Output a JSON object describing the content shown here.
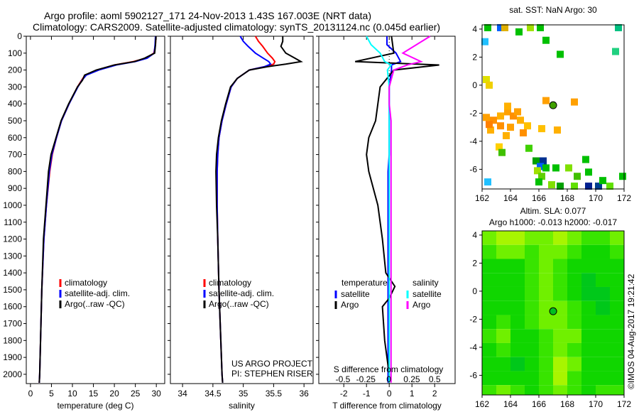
{
  "header": {
    "line1": "Argo profile: aoml 5902127_171 24-Nov-2013 1.43S 167.003E (NRT data)",
    "line2": "Climatology: CARS2009. Satellite-adjusted climatology: synTS_20131124.nc (0.045d earlier)"
  },
  "colors": {
    "climatology": "#ff0000",
    "satellite": "#0000ff",
    "argo": "#000000",
    "sal_satellite": "#00ffff",
    "sal_argo": "#ff00ff"
  },
  "chart_data": [
    {
      "type": "line",
      "id": "temperature",
      "xlabel": "temperature (deg C)",
      "ylabel": "",
      "xlim": [
        -1,
        32
      ],
      "ylim": [
        2055,
        0
      ],
      "xticks": [
        0,
        5,
        10,
        15,
        20,
        25,
        30
      ],
      "yticks": [
        0,
        100,
        200,
        300,
        400,
        500,
        600,
        700,
        800,
        900,
        1000,
        1100,
        1200,
        1300,
        1400,
        1500,
        1600,
        1700,
        1800,
        1900,
        2000
      ],
      "legend": [
        "climatology",
        "satellite-adj. clim.",
        "Argo(..raw -QC)"
      ],
      "depth": [
        0,
        50,
        100,
        130,
        150,
        170,
        200,
        230,
        260,
        300,
        400,
        500,
        600,
        700,
        800,
        1000,
        1200,
        1500,
        1800,
        2000,
        2050
      ],
      "series": [
        {
          "name": "climatology",
          "color": "#ff0000",
          "values": [
            29.9,
            29.8,
            29.4,
            27.5,
            24.5,
            20,
            16,
            13,
            12.2,
            11.2,
            9.2,
            7.4,
            6.2,
            5.2,
            4.6,
            3.8,
            3.2,
            2.7,
            2.4,
            2.2,
            2.1
          ]
        },
        {
          "name": "satellite-adj. clim.",
          "color": "#0000ff",
          "values": [
            29.8,
            29.7,
            29.5,
            27.8,
            25,
            20.5,
            16.3,
            13.3,
            12.3,
            11.3,
            9.2,
            7.4,
            6.2,
            5.1,
            4.5,
            3.8,
            3.2,
            2.7,
            2.4,
            2.2,
            2.1
          ]
        },
        {
          "name": "Argo(..raw -QC)",
          "color": "#000000",
          "values": [
            29.9,
            29.8,
            29.6,
            27.2,
            24.8,
            20,
            15.7,
            12.9,
            12.4,
            11.2,
            9.1,
            7.3,
            6.1,
            4.9,
            4.3,
            3.7,
            3.1,
            2.7,
            2.4,
            2.2,
            2.1
          ]
        }
      ]
    },
    {
      "type": "line",
      "id": "salinity",
      "xlabel": "salinity",
      "xlim": [
        33.8,
        36.15
      ],
      "ylim": [
        2055,
        0
      ],
      "xticks": [
        34,
        34.5,
        35,
        35.5,
        36
      ],
      "legend": [
        "climatology",
        "satellite-adj. clim.",
        "Argo(..raw -QC)"
      ],
      "annotation": [
        "US ARGO PROJECT",
        "PI: STEPHEN RISER"
      ],
      "depth": [
        0,
        30,
        60,
        100,
        130,
        150,
        165,
        180,
        200,
        250,
        300,
        400,
        500,
        600,
        700,
        800,
        1000,
        1200,
        1500,
        1800,
        2000,
        2050
      ],
      "series": [
        {
          "name": "climatology",
          "color": "#ff0000",
          "values": [
            35.2,
            35.25,
            35.32,
            35.4,
            35.48,
            35.52,
            35.5,
            35.35,
            35.1,
            34.9,
            34.8,
            34.72,
            34.65,
            34.6,
            34.58,
            34.57,
            34.57,
            34.58,
            34.6,
            34.63,
            34.65,
            34.66
          ]
        },
        {
          "name": "satellite-adj. clim.",
          "color": "#0000ff",
          "values": [
            34.95,
            35.0,
            35.08,
            35.2,
            35.33,
            35.42,
            35.45,
            35.35,
            35.1,
            34.9,
            34.8,
            34.72,
            34.65,
            34.6,
            34.58,
            34.57,
            34.57,
            34.58,
            34.6,
            34.63,
            34.65,
            34.66
          ]
        },
        {
          "name": "Argo(..raw -QC)",
          "color": "#000000",
          "values": [
            35.65,
            35.65,
            35.62,
            35.7,
            35.85,
            35.95,
            35.7,
            35.4,
            35.1,
            34.9,
            34.79,
            34.71,
            34.64,
            34.59,
            34.56,
            34.55,
            34.56,
            34.58,
            34.6,
            34.63,
            34.65,
            34.66
          ]
        }
      ]
    },
    {
      "type": "line",
      "id": "difference",
      "xlabel": "T difference from climatology",
      "x2label": "S difference from climatology",
      "xlim": [
        -3.1,
        2.9
      ],
      "ylim": [
        2055,
        0
      ],
      "xticks": [
        -2,
        -1,
        0,
        1,
        2
      ],
      "x2ticks": [
        "-0.5",
        "-0.25",
        "0",
        "0.25",
        "0.5"
      ],
      "legend": {
        "temperature": "temperature",
        "salinity": "salinity",
        "satellite": "satellite",
        "argo": "Argo"
      },
      "depth": [
        0,
        50,
        100,
        150,
        170,
        200,
        300,
        400,
        500,
        600,
        700,
        800,
        1000,
        1200,
        1400,
        1480,
        1550,
        1600,
        1800,
        2000,
        2050
      ],
      "series": [
        {
          "name": "T satellite",
          "color": "#0000ff",
          "values": [
            -0.1,
            -0.1,
            0.3,
            0.5,
            0.1,
            0.1,
            0,
            0,
            0,
            0,
            0,
            -0.05,
            -0.05,
            -0.05,
            -0.05,
            -0.05,
            -0.05,
            -0.05,
            -0.05,
            -0.05,
            -0.05
          ]
        },
        {
          "name": "T Argo",
          "color": "#000000",
          "values": [
            0.1,
            0.15,
            0.2,
            -1.5,
            2.2,
            0.2,
            -0.4,
            -0.5,
            -0.6,
            -0.9,
            -1,
            -0.9,
            -0.5,
            -0.3,
            -0.15,
            0.25,
            0,
            -0.3,
            -0.2,
            0,
            0
          ]
        },
        {
          "name": "S satellite",
          "color": "#00ffff",
          "values": [
            -0.25,
            -0.2,
            -0.1,
            -0.05,
            0.02,
            -0.02,
            0,
            0,
            0,
            0,
            0,
            0,
            0,
            0,
            0,
            0,
            0,
            0,
            0,
            0,
            0
          ]
        },
        {
          "name": "S Argo",
          "color": "#ff00ff",
          "values": [
            0.45,
            0.3,
            0.15,
            0.35,
            0.2,
            0.05,
            0,
            0,
            0.02,
            0.02,
            0.02,
            0.02,
            0.02,
            0.02,
            0.02,
            0.02,
            0.02,
            0.02,
            0.02,
            0.02,
            0.02
          ]
        }
      ]
    },
    {
      "type": "heatmap",
      "id": "sst-map",
      "title": "sat. SST: NaN Argo: 30",
      "xlim": [
        162,
        172
      ],
      "ylim": [
        -7.4,
        4.3
      ],
      "xticks": [
        162,
        164,
        166,
        168,
        170,
        172
      ],
      "yticks": [
        4,
        2,
        0,
        -2,
        -4,
        -6
      ],
      "argo_position": [
        167.003,
        -1.43
      ],
      "cells": [
        [
          162.4,
          4.1,
          "#00c000"
        ],
        [
          163.3,
          4.1,
          "#0060ff"
        ],
        [
          163.6,
          4.1,
          "#e0b000"
        ],
        [
          164.6,
          3.8,
          "#00c000"
        ],
        [
          165.4,
          4.1,
          "#a0e000"
        ],
        [
          166.1,
          4.1,
          "#00c000"
        ],
        [
          171.6,
          4.1,
          "#00c080"
        ],
        [
          162.2,
          3.1,
          "#20c0ff"
        ],
        [
          166.5,
          3.2,
          "#00c000"
        ],
        [
          171.4,
          2.4,
          "#20d080"
        ],
        [
          167.5,
          2.2,
          "#00c000"
        ],
        [
          162.3,
          0.4,
          "#e0e000"
        ],
        [
          162.5,
          0,
          "#f0d000"
        ],
        [
          166.5,
          -1.1,
          "#ffa000"
        ],
        [
          168.5,
          -1.2,
          "#ffa000"
        ],
        [
          162.3,
          -2.3,
          "#ffa000"
        ],
        [
          162.8,
          -2.5,
          "#ff9000"
        ],
        [
          163.3,
          -2.2,
          "#ffb000"
        ],
        [
          163.8,
          -1.9,
          "#ffa000"
        ],
        [
          164.2,
          -2.2,
          "#ff9000"
        ],
        [
          164.7,
          -2.5,
          "#ffb000"
        ],
        [
          163.3,
          -2.9,
          "#ff9000"
        ],
        [
          162.6,
          -3.2,
          "#ffb000"
        ],
        [
          164,
          -3,
          "#ffa000"
        ],
        [
          165.2,
          -2.9,
          "#ffc000"
        ],
        [
          163.8,
          -1.5,
          "#ffb000"
        ],
        [
          164.5,
          -1.9,
          "#ffa000"
        ],
        [
          164.9,
          -3.4,
          "#ff9000"
        ],
        [
          166.2,
          -3.1,
          "#ffc000"
        ],
        [
          167.3,
          -3.2,
          "#ffb000"
        ],
        [
          163.7,
          -3.6,
          "#ffb000"
        ],
        [
          162.5,
          -2.8,
          "#ff8000"
        ],
        [
          163.2,
          -4.4,
          "#ffd000"
        ],
        [
          165.3,
          -4.5,
          "#40d000"
        ],
        [
          165.8,
          -5.4,
          "#00a000"
        ],
        [
          166.3,
          -5.4,
          "#003090"
        ],
        [
          166.1,
          -5.8,
          "#0060ff"
        ],
        [
          166.5,
          -5.9,
          "#00c000"
        ],
        [
          165.9,
          -6.1,
          "#a0e000"
        ],
        [
          166.2,
          -6.5,
          "#60d000"
        ],
        [
          167.2,
          -5.9,
          "#00c000"
        ],
        [
          168.1,
          -5.9,
          "#80e000"
        ],
        [
          168.7,
          -6.5,
          "#40c000"
        ],
        [
          169.5,
          -6.2,
          "#00c000"
        ],
        [
          166,
          -6.9,
          "#00c000"
        ],
        [
          166.9,
          -7.1,
          "#80e000"
        ],
        [
          167.5,
          -7.2,
          "#00a000"
        ],
        [
          168.5,
          -7.2,
          "#60e000"
        ],
        [
          169.5,
          -7.2,
          "#002090"
        ],
        [
          170.2,
          -7.2,
          "#004090"
        ],
        [
          170.5,
          -6.8,
          "#00c000"
        ],
        [
          171,
          -7.2,
          "#60e000"
        ],
        [
          171.9,
          -6.5,
          "#00c000"
        ],
        [
          163.4,
          -4.8,
          "#40c000"
        ],
        [
          162.4,
          -6.9,
          "#20c0ff"
        ],
        [
          169.3,
          -5.3,
          "#00c000"
        ]
      ]
    },
    {
      "type": "heatmap",
      "id": "sla-map",
      "title": "Altim. SLA: 0.077",
      "subtitle": "Argo h1000: -0.013 h2000: -0.017",
      "xlim": [
        162,
        172
      ],
      "ylim": [
        -7.4,
        4.3
      ],
      "xticks": [
        162,
        164,
        166,
        168,
        170,
        172
      ],
      "yticks": [
        4,
        2,
        0,
        -2,
        -4,
        -6
      ],
      "argo_position": [
        167.003,
        -1.43
      ],
      "grid_lon_start": 162,
      "grid_lat_start": 4.3,
      "grid_step": 1,
      "grid": [
        [
          3,
          4,
          4,
          3,
          3,
          4,
          3,
          2,
          2,
          3
        ],
        [
          2,
          3,
          3,
          2,
          3,
          3,
          2,
          1,
          1,
          2
        ],
        [
          1,
          1,
          1,
          2,
          3,
          2,
          1,
          1,
          1,
          1
        ],
        [
          1,
          1,
          1,
          2,
          3,
          2,
          1,
          0,
          1,
          1
        ],
        [
          1,
          1,
          1,
          2,
          3,
          2,
          1,
          0,
          0,
          1
        ],
        [
          1,
          1,
          1,
          2,
          3,
          3,
          2,
          1,
          0,
          1
        ],
        [
          1,
          2,
          1,
          2,
          3,
          3,
          2,
          1,
          1,
          1
        ],
        [
          2,
          3,
          1,
          1,
          2,
          3,
          3,
          1,
          1,
          1
        ],
        [
          1,
          2,
          1,
          1,
          2,
          3,
          2,
          1,
          1,
          1
        ],
        [
          1,
          1,
          0,
          1,
          2,
          4,
          3,
          1,
          1,
          1
        ],
        [
          1,
          1,
          1,
          1,
          2,
          4,
          2,
          1,
          1,
          1
        ],
        [
          2,
          3,
          2,
          1,
          2,
          3,
          2,
          1,
          2,
          2
        ]
      ],
      "palette": [
        "#00c81a",
        "#10d600",
        "#38e400",
        "#70f000",
        "#a8f500"
      ]
    }
  ],
  "footer": {
    "credit": "©IMOS 04-Aug-2017 19:21:42"
  }
}
